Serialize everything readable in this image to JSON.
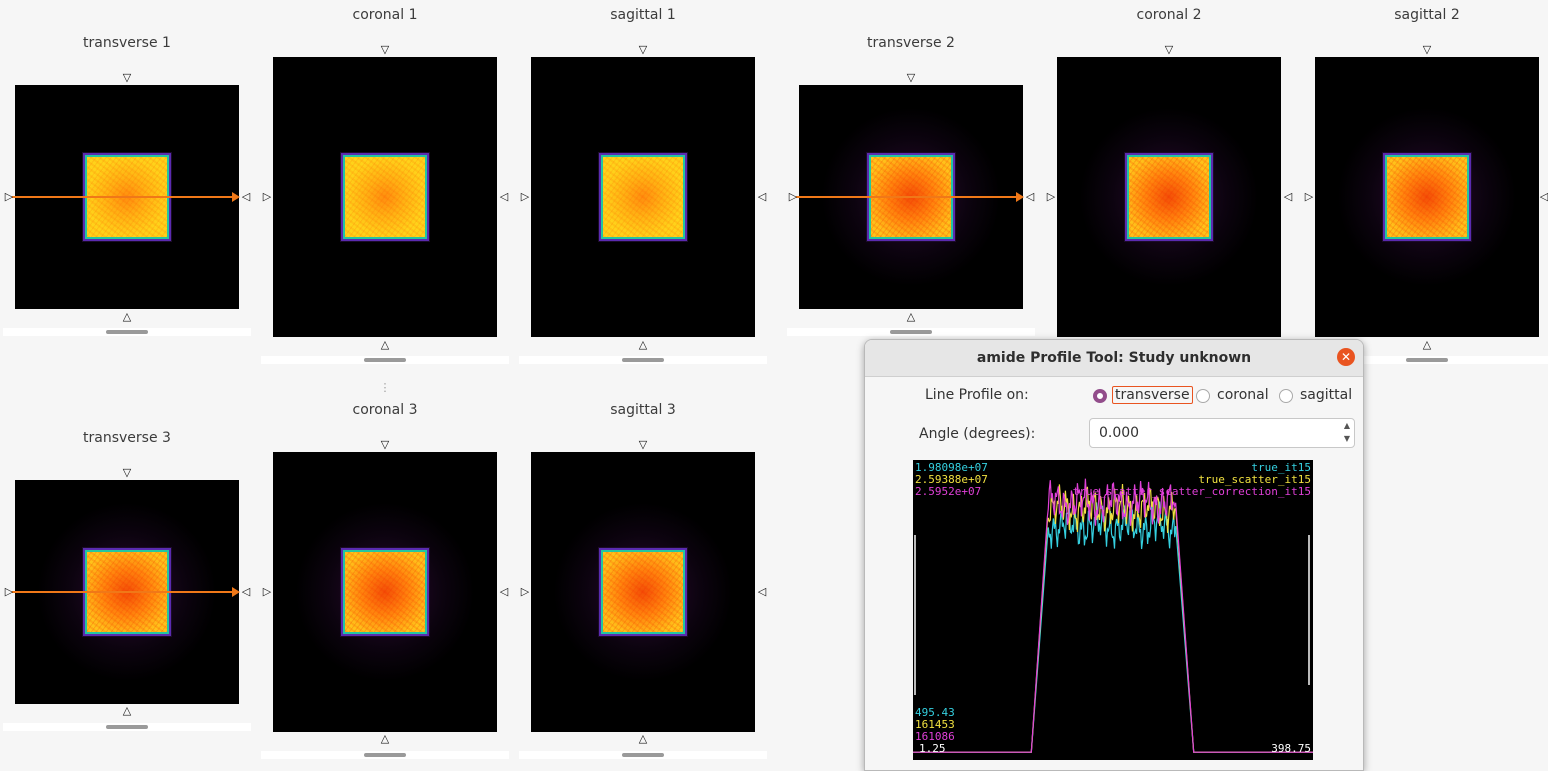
{
  "views": {
    "transverse1": "transverse 1",
    "coronal1": "coronal 1",
    "sagittal1": "sagittal 1",
    "transverse2": "transverse 2",
    "coronal2": "coronal 2",
    "sagittal2": "sagittal 2",
    "transverse3": "transverse 3",
    "coronal3": "coronal 3",
    "sagittal3": "sagittal 3"
  },
  "dialog": {
    "title": "amide Profile Tool: Study unknown",
    "line_profile_label": "Line Profile on:",
    "options": [
      "transverse",
      "coronal",
      "sagittal"
    ],
    "selected_option": "transverse",
    "angle_label": "Angle (degrees):",
    "angle_value": "0.000"
  },
  "chart_data": {
    "type": "line",
    "x_range": [
      1.25,
      398.75
    ],
    "series": [
      {
        "name": "true_it15",
        "color": "#35d0e0",
        "max": "1.98098e+07",
        "min": "495.43"
      },
      {
        "name": "true_scatter_it15",
        "color": "#f0e040",
        "max": "2.59388e+07",
        "min": "161453"
      },
      {
        "name": "true_scatter_scatter_correction_it15",
        "color": "#e040d8",
        "max": "2.5952e+07",
        "min": "161086"
      }
    ],
    "x_min_label": "1.25",
    "x_max_label": "398.75",
    "profile_shape": {
      "baseline": 0.02,
      "rise_start": 118,
      "rise_end": 135,
      "plateau_level": 0.82,
      "fall_start": 262,
      "fall_end": 280
    }
  },
  "colors": {
    "profile_line": "#f07818",
    "accent": "#e95420",
    "radio_selected": "#924d8b"
  }
}
